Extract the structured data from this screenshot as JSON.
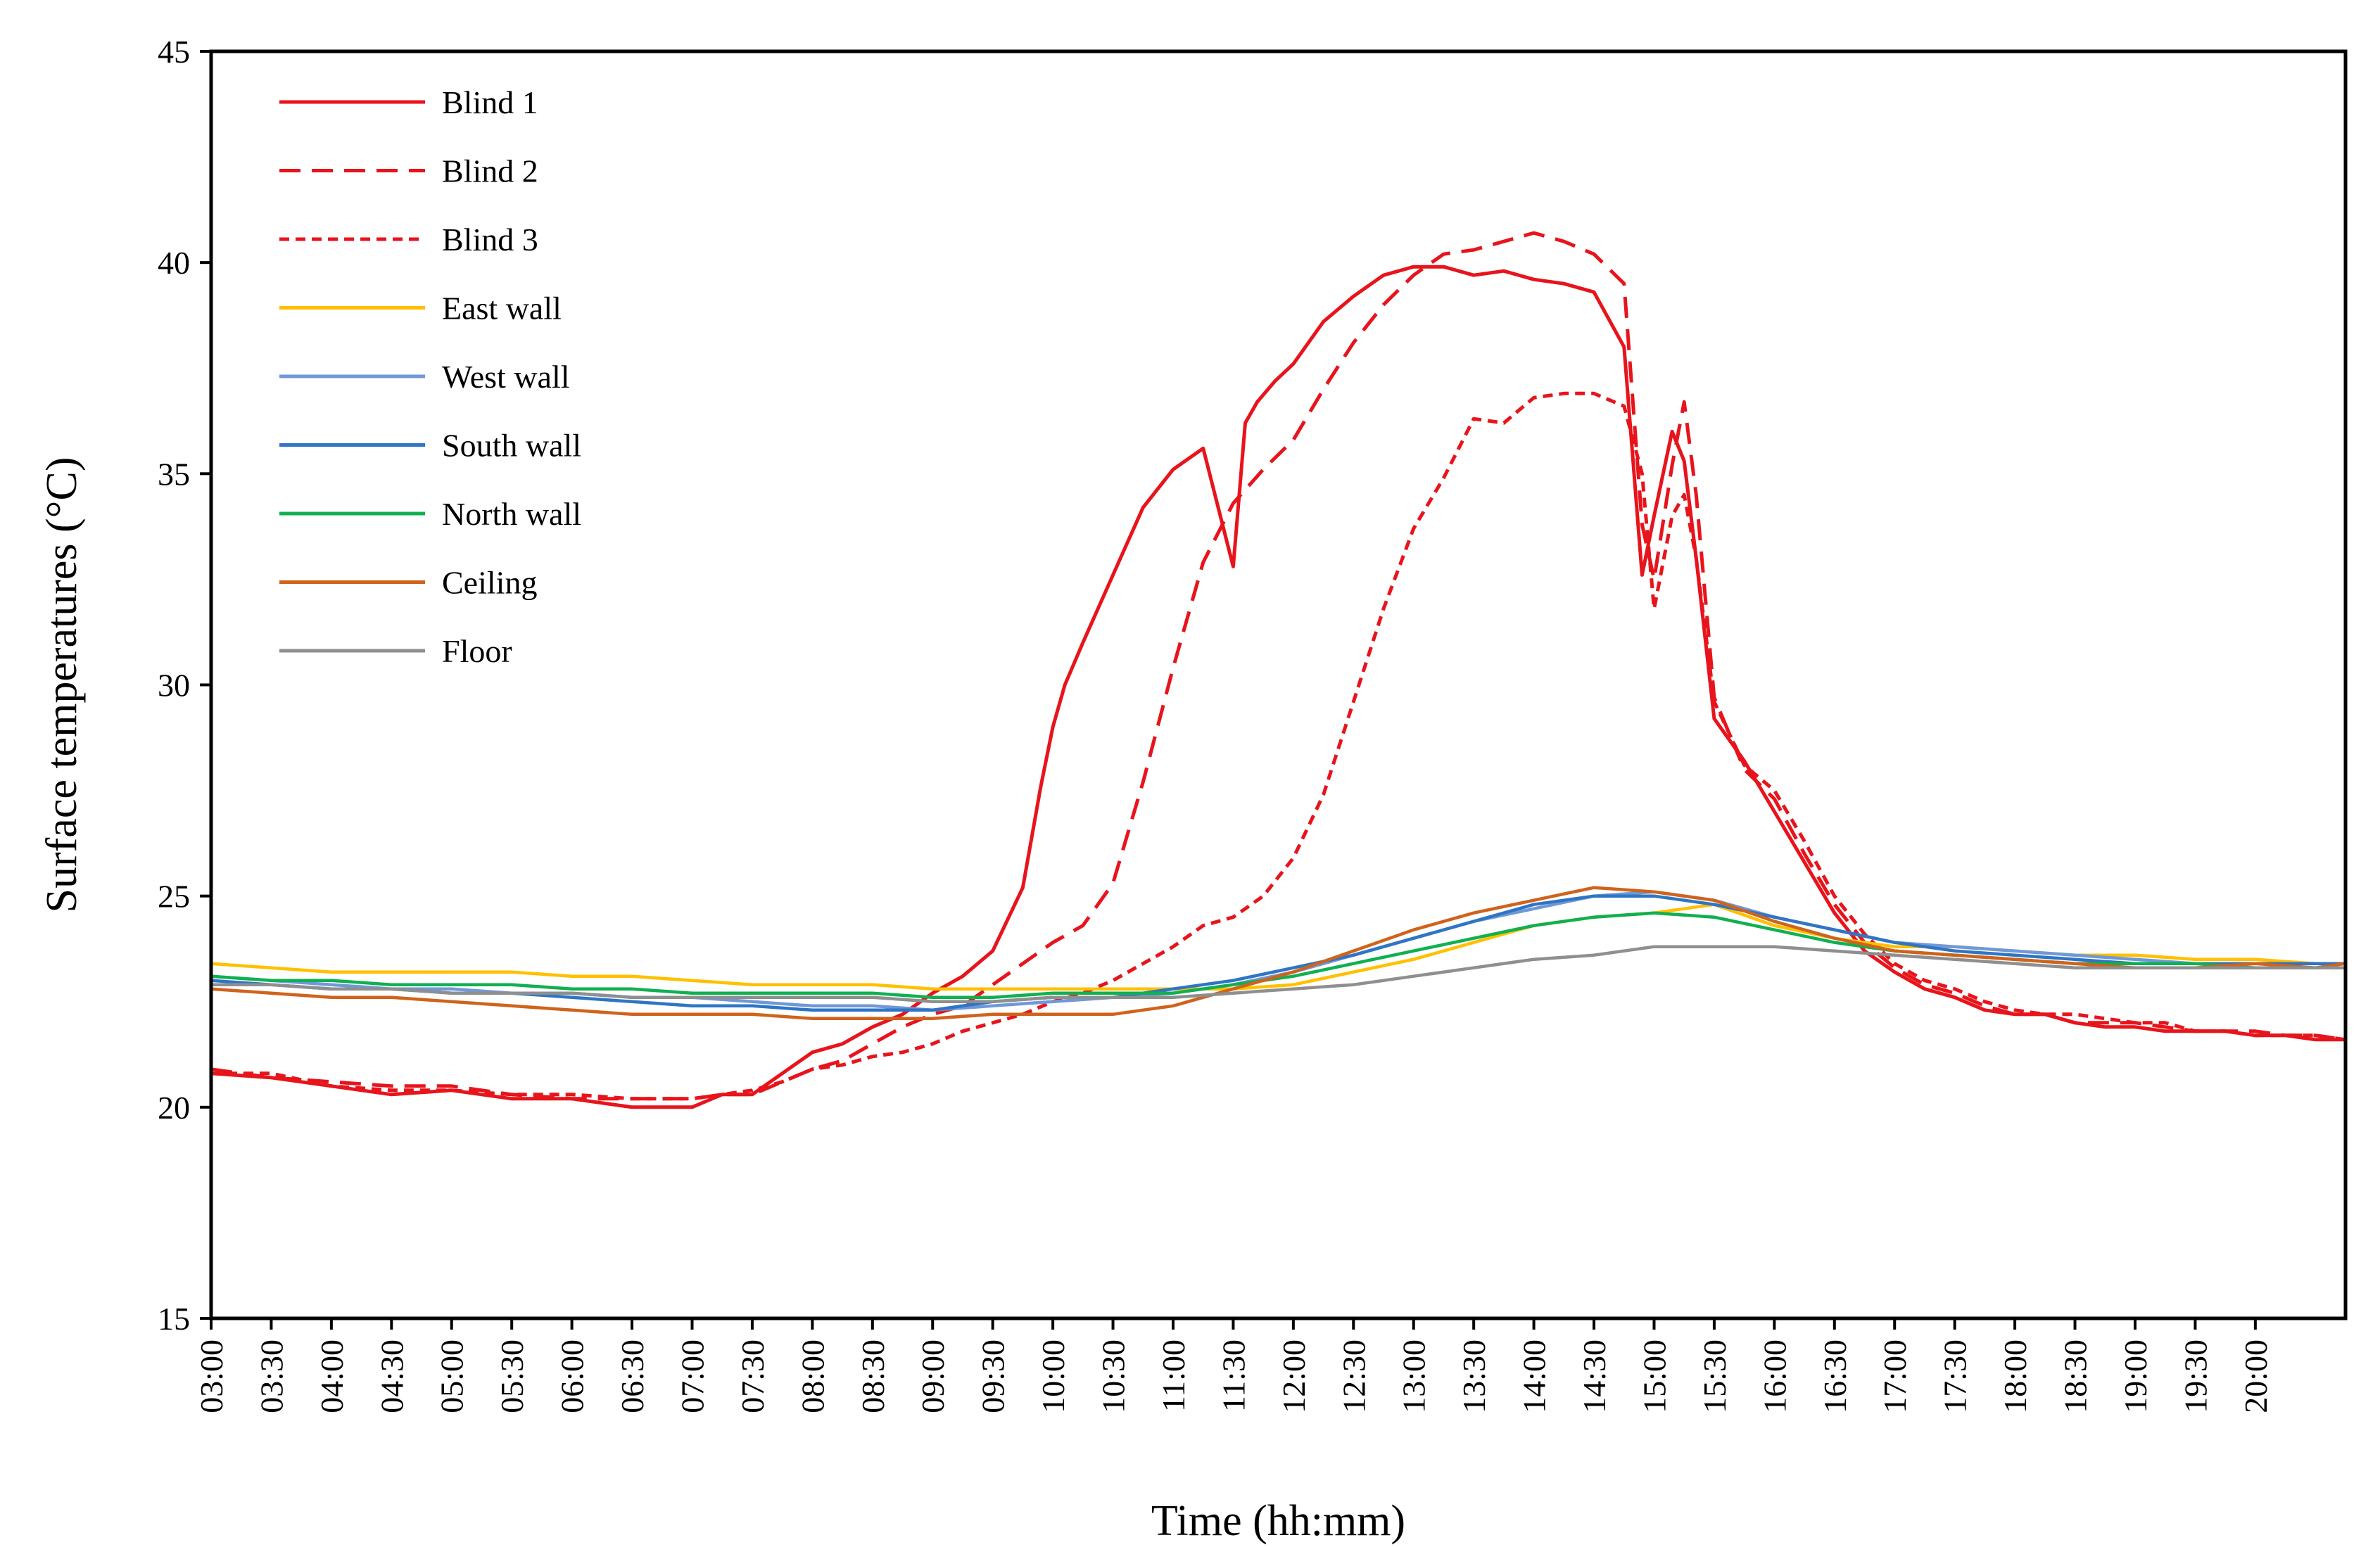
{
  "chart_data": {
    "type": "line",
    "title": "",
    "xlabel": "Time (hh:mm)",
    "ylabel": "Surface temperatures (°C)",
    "ylim": [
      15,
      45
    ],
    "yticks": [
      15,
      20,
      25,
      30,
      35,
      40,
      45
    ],
    "xlim": [
      3.0,
      20.75
    ],
    "xticks": [
      "03:00",
      "03:30",
      "04:00",
      "04:30",
      "05:00",
      "05:30",
      "06:00",
      "06:30",
      "07:00",
      "07:30",
      "08:00",
      "08:30",
      "09:00",
      "09:30",
      "10:00",
      "10:30",
      "11:00",
      "11:30",
      "12:00",
      "12:30",
      "13:00",
      "13:30",
      "14:00",
      "14:30",
      "15:00",
      "15:30",
      "16:00",
      "16:30",
      "17:00",
      "17:30",
      "18:00",
      "18:30",
      "19:00",
      "19:30",
      "20:00"
    ],
    "legend_position": "top-left",
    "series": [
      {
        "name": "Blind 1",
        "color": "#e8141c",
        "dash": "solid",
        "x": [
          3.0,
          3.5,
          4.0,
          4.5,
          5.0,
          5.5,
          6.0,
          6.5,
          7.0,
          7.25,
          7.5,
          7.75,
          8.0,
          8.25,
          8.5,
          8.75,
          9.0,
          9.25,
          9.5,
          9.75,
          9.9,
          10.0,
          10.1,
          10.25,
          10.5,
          10.75,
          11.0,
          11.25,
          11.5,
          11.6,
          11.7,
          11.85,
          12.0,
          12.25,
          12.5,
          12.75,
          13.0,
          13.25,
          13.5,
          13.75,
          14.0,
          14.25,
          14.5,
          14.75,
          14.9,
          15.0,
          15.15,
          15.25,
          15.35,
          15.5,
          15.75,
          16.0,
          16.25,
          16.5,
          16.75,
          17.0,
          17.25,
          17.5,
          17.75,
          18.0,
          18.25,
          18.5,
          18.75,
          19.0,
          19.25,
          19.5,
          19.75,
          20.0,
          20.25,
          20.5,
          20.75
        ],
        "values": [
          20.8,
          20.7,
          20.5,
          20.3,
          20.4,
          20.2,
          20.2,
          20.0,
          20.0,
          20.3,
          20.3,
          20.8,
          21.3,
          21.5,
          21.9,
          22.2,
          22.7,
          23.1,
          23.7,
          25.2,
          27.6,
          29.0,
          30.0,
          31.0,
          32.6,
          34.2,
          35.1,
          35.6,
          32.8,
          36.2,
          36.7,
          37.2,
          37.6,
          38.6,
          39.2,
          39.7,
          39.9,
          39.9,
          39.7,
          39.8,
          39.6,
          39.5,
          39.3,
          38.0,
          32.6,
          34.0,
          36.0,
          35.3,
          33.0,
          29.2,
          28.2,
          27.0,
          25.8,
          24.6,
          23.7,
          23.2,
          22.8,
          22.6,
          22.3,
          22.2,
          22.2,
          22.0,
          21.9,
          21.9,
          21.8,
          21.8,
          21.8,
          21.7,
          21.7,
          21.6,
          21.6
        ]
      },
      {
        "name": "Blind 2",
        "color": "#e8141c",
        "dash": "dashed",
        "x": [
          3.0,
          3.5,
          4.0,
          4.5,
          5.0,
          5.5,
          6.0,
          6.5,
          7.0,
          7.25,
          7.5,
          7.75,
          8.0,
          8.25,
          8.5,
          8.75,
          9.0,
          9.25,
          9.5,
          9.75,
          10.0,
          10.25,
          10.5,
          10.75,
          11.0,
          11.25,
          11.5,
          11.75,
          12.0,
          12.25,
          12.5,
          12.75,
          13.0,
          13.25,
          13.5,
          13.75,
          14.0,
          14.25,
          14.5,
          14.75,
          14.9,
          15.0,
          15.15,
          15.25,
          15.35,
          15.5,
          15.75,
          16.0,
          16.25,
          16.5,
          16.75,
          17.0,
          17.25,
          17.5,
          17.75,
          18.0,
          18.25,
          18.5,
          18.75,
          19.0,
          19.25,
          19.5,
          19.75,
          20.0,
          20.25,
          20.5,
          20.75
        ],
        "values": [
          20.9,
          20.7,
          20.6,
          20.5,
          20.5,
          20.3,
          20.2,
          20.2,
          20.2,
          20.3,
          20.3,
          20.6,
          20.9,
          21.1,
          21.5,
          21.9,
          22.2,
          22.4,
          22.9,
          23.4,
          23.9,
          24.3,
          25.3,
          27.7,
          30.4,
          32.9,
          34.3,
          35.1,
          35.8,
          37.0,
          38.1,
          39.0,
          39.7,
          40.2,
          40.3,
          40.5,
          40.7,
          40.5,
          40.2,
          39.5,
          33.8,
          32.5,
          35.2,
          36.7,
          34.5,
          29.7,
          28.0,
          27.3,
          26.0,
          24.8,
          23.9,
          23.3,
          22.9,
          22.7,
          22.4,
          22.2,
          22.2,
          22.0,
          22.0,
          22.0,
          21.9,
          21.8,
          21.8,
          21.8,
          21.7,
          21.7,
          21.6
        ]
      },
      {
        "name": "Blind 3",
        "color": "#e8141c",
        "dash": "dotted",
        "x": [
          3.0,
          3.5,
          4.0,
          4.5,
          5.0,
          5.5,
          6.0,
          6.5,
          7.0,
          7.25,
          7.5,
          7.75,
          8.0,
          8.25,
          8.5,
          8.75,
          9.0,
          9.25,
          9.5,
          9.75,
          10.0,
          10.25,
          10.5,
          10.75,
          11.0,
          11.25,
          11.5,
          11.75,
          12.0,
          12.25,
          12.5,
          12.75,
          13.0,
          13.25,
          13.5,
          13.75,
          14.0,
          14.25,
          14.5,
          14.75,
          14.9,
          15.0,
          15.15,
          15.25,
          15.35,
          15.5,
          15.75,
          16.0,
          16.25,
          16.5,
          16.75,
          17.0,
          17.25,
          17.5,
          17.75,
          18.0,
          18.25,
          18.5,
          18.75,
          19.0,
          19.25,
          19.5,
          19.75,
          20.0,
          20.25,
          20.5,
          20.75
        ],
        "values": [
          20.8,
          20.8,
          20.5,
          20.4,
          20.4,
          20.3,
          20.3,
          20.2,
          20.2,
          20.3,
          20.4,
          20.6,
          20.9,
          21.0,
          21.2,
          21.3,
          21.5,
          21.8,
          22.0,
          22.2,
          22.5,
          22.7,
          23.0,
          23.4,
          23.8,
          24.3,
          24.5,
          25.0,
          25.9,
          27.4,
          29.6,
          31.8,
          33.7,
          34.9,
          36.3,
          36.2,
          36.8,
          36.9,
          36.9,
          36.6,
          35.0,
          31.8,
          34.0,
          34.5,
          33.0,
          29.6,
          28.1,
          27.5,
          26.3,
          25.0,
          24.1,
          23.4,
          23.0,
          22.8,
          22.5,
          22.3,
          22.2,
          22.2,
          22.1,
          22.0,
          22.0,
          21.8,
          21.8,
          21.7,
          21.7,
          21.7,
          21.6
        ]
      },
      {
        "name": "East wall",
        "color": "#ffc000",
        "dash": "solid",
        "x": [
          3.0,
          3.5,
          4.0,
          4.5,
          5.0,
          5.5,
          6.0,
          6.5,
          7.0,
          7.5,
          8.0,
          8.5,
          9.0,
          9.5,
          10.0,
          10.5,
          11.0,
          11.5,
          12.0,
          12.5,
          13.0,
          13.5,
          14.0,
          14.5,
          15.0,
          15.5,
          16.0,
          16.5,
          17.0,
          17.5,
          18.0,
          18.5,
          19.0,
          19.5,
          20.0,
          20.5,
          20.75
        ],
        "values": [
          23.4,
          23.3,
          23.2,
          23.2,
          23.2,
          23.2,
          23.1,
          23.1,
          23.0,
          22.9,
          22.9,
          22.9,
          22.8,
          22.8,
          22.8,
          22.8,
          22.8,
          22.8,
          22.9,
          23.2,
          23.5,
          23.9,
          24.3,
          24.5,
          24.6,
          24.8,
          24.3,
          24.0,
          23.8,
          23.8,
          23.7,
          23.6,
          23.6,
          23.5,
          23.5,
          23.4,
          23.4
        ]
      },
      {
        "name": "West wall",
        "color": "#6f98d8",
        "dash": "solid",
        "x": [
          3.0,
          3.5,
          4.0,
          4.5,
          5.0,
          5.5,
          6.0,
          6.5,
          7.0,
          7.5,
          8.0,
          8.5,
          9.0,
          9.5,
          10.0,
          10.5,
          11.0,
          11.5,
          12.0,
          12.5,
          13.0,
          13.5,
          14.0,
          14.5,
          15.0,
          15.5,
          16.0,
          16.5,
          17.0,
          17.5,
          18.0,
          18.5,
          19.0,
          19.5,
          20.0,
          20.5,
          20.75
        ],
        "values": [
          23.1,
          23.0,
          22.9,
          22.8,
          22.8,
          22.7,
          22.7,
          22.6,
          22.6,
          22.5,
          22.4,
          22.4,
          22.3,
          22.4,
          22.5,
          22.6,
          22.7,
          22.9,
          23.2,
          23.6,
          24.0,
          24.4,
          24.7,
          25.0,
          25.1,
          24.9,
          24.5,
          24.2,
          23.9,
          23.8,
          23.7,
          23.6,
          23.5,
          23.4,
          23.4,
          23.4,
          23.4
        ]
      },
      {
        "name": "South wall",
        "color": "#2e75c5",
        "dash": "solid",
        "x": [
          3.0,
          3.5,
          4.0,
          4.5,
          5.0,
          5.5,
          6.0,
          6.5,
          7.0,
          7.5,
          8.0,
          8.5,
          9.0,
          9.5,
          10.0,
          10.5,
          11.0,
          11.5,
          12.0,
          12.5,
          13.0,
          13.5,
          14.0,
          14.5,
          15.0,
          15.5,
          16.0,
          16.5,
          17.0,
          17.5,
          18.0,
          18.5,
          19.0,
          19.5,
          20.0,
          20.5,
          20.75
        ],
        "values": [
          23.0,
          22.9,
          22.8,
          22.8,
          22.7,
          22.7,
          22.6,
          22.5,
          22.4,
          22.4,
          22.3,
          22.3,
          22.3,
          22.5,
          22.6,
          22.6,
          22.8,
          23.0,
          23.3,
          23.6,
          24.0,
          24.4,
          24.8,
          25.0,
          25.0,
          24.8,
          24.5,
          24.2,
          23.9,
          23.7,
          23.6,
          23.5,
          23.4,
          23.4,
          23.4,
          23.4,
          23.4
        ]
      },
      {
        "name": "North wall",
        "color": "#10b050",
        "dash": "solid",
        "x": [
          3.0,
          3.5,
          4.0,
          4.5,
          5.0,
          5.5,
          6.0,
          6.5,
          7.0,
          7.5,
          8.0,
          8.5,
          9.0,
          9.5,
          10.0,
          10.5,
          11.0,
          11.5,
          12.0,
          12.5,
          13.0,
          13.5,
          14.0,
          14.5,
          15.0,
          15.5,
          16.0,
          16.5,
          17.0,
          17.5,
          18.0,
          18.5,
          19.0,
          19.5,
          20.0,
          20.5,
          20.75
        ],
        "values": [
          23.1,
          23.0,
          23.0,
          22.9,
          22.9,
          22.9,
          22.8,
          22.8,
          22.7,
          22.7,
          22.7,
          22.7,
          22.6,
          22.6,
          22.7,
          22.7,
          22.7,
          22.9,
          23.1,
          23.4,
          23.7,
          24.0,
          24.3,
          24.5,
          24.6,
          24.5,
          24.2,
          23.9,
          23.7,
          23.6,
          23.5,
          23.4,
          23.4,
          23.4,
          23.3,
          23.3,
          23.3
        ]
      },
      {
        "name": "Ceiling",
        "color": "#d0631c",
        "dash": "solid",
        "x": [
          3.0,
          3.5,
          4.0,
          4.5,
          5.0,
          5.5,
          6.0,
          6.5,
          7.0,
          7.5,
          8.0,
          8.5,
          9.0,
          9.5,
          10.0,
          10.5,
          11.0,
          11.5,
          12.0,
          12.5,
          13.0,
          13.5,
          14.0,
          14.5,
          15.0,
          15.5,
          16.0,
          16.5,
          17.0,
          17.5,
          18.0,
          18.5,
          19.0,
          19.5,
          20.0,
          20.5,
          20.75
        ],
        "values": [
          22.8,
          22.7,
          22.6,
          22.6,
          22.5,
          22.4,
          22.3,
          22.2,
          22.2,
          22.2,
          22.1,
          22.1,
          22.1,
          22.2,
          22.2,
          22.2,
          22.4,
          22.8,
          23.2,
          23.7,
          24.2,
          24.6,
          24.9,
          25.2,
          25.1,
          24.9,
          24.4,
          24.0,
          23.7,
          23.6,
          23.5,
          23.4,
          23.3,
          23.3,
          23.4,
          23.3,
          23.4
        ]
      },
      {
        "name": "Floor",
        "color": "#8f8f8f",
        "dash": "solid",
        "x": [
          3.0,
          3.5,
          4.0,
          4.5,
          5.0,
          5.5,
          6.0,
          6.5,
          7.0,
          7.5,
          8.0,
          8.5,
          9.0,
          9.5,
          10.0,
          10.5,
          11.0,
          11.5,
          12.0,
          12.5,
          13.0,
          13.5,
          14.0,
          14.5,
          15.0,
          15.5,
          16.0,
          16.5,
          17.0,
          17.5,
          18.0,
          18.5,
          19.0,
          19.5,
          20.0,
          20.5,
          20.75
        ],
        "values": [
          22.9,
          22.9,
          22.8,
          22.8,
          22.7,
          22.7,
          22.7,
          22.6,
          22.6,
          22.6,
          22.6,
          22.6,
          22.5,
          22.5,
          22.6,
          22.6,
          22.6,
          22.7,
          22.8,
          22.9,
          23.1,
          23.3,
          23.5,
          23.6,
          23.8,
          23.8,
          23.8,
          23.7,
          23.6,
          23.5,
          23.4,
          23.3,
          23.3,
          23.3,
          23.3,
          23.3,
          23.3
        ]
      }
    ]
  }
}
